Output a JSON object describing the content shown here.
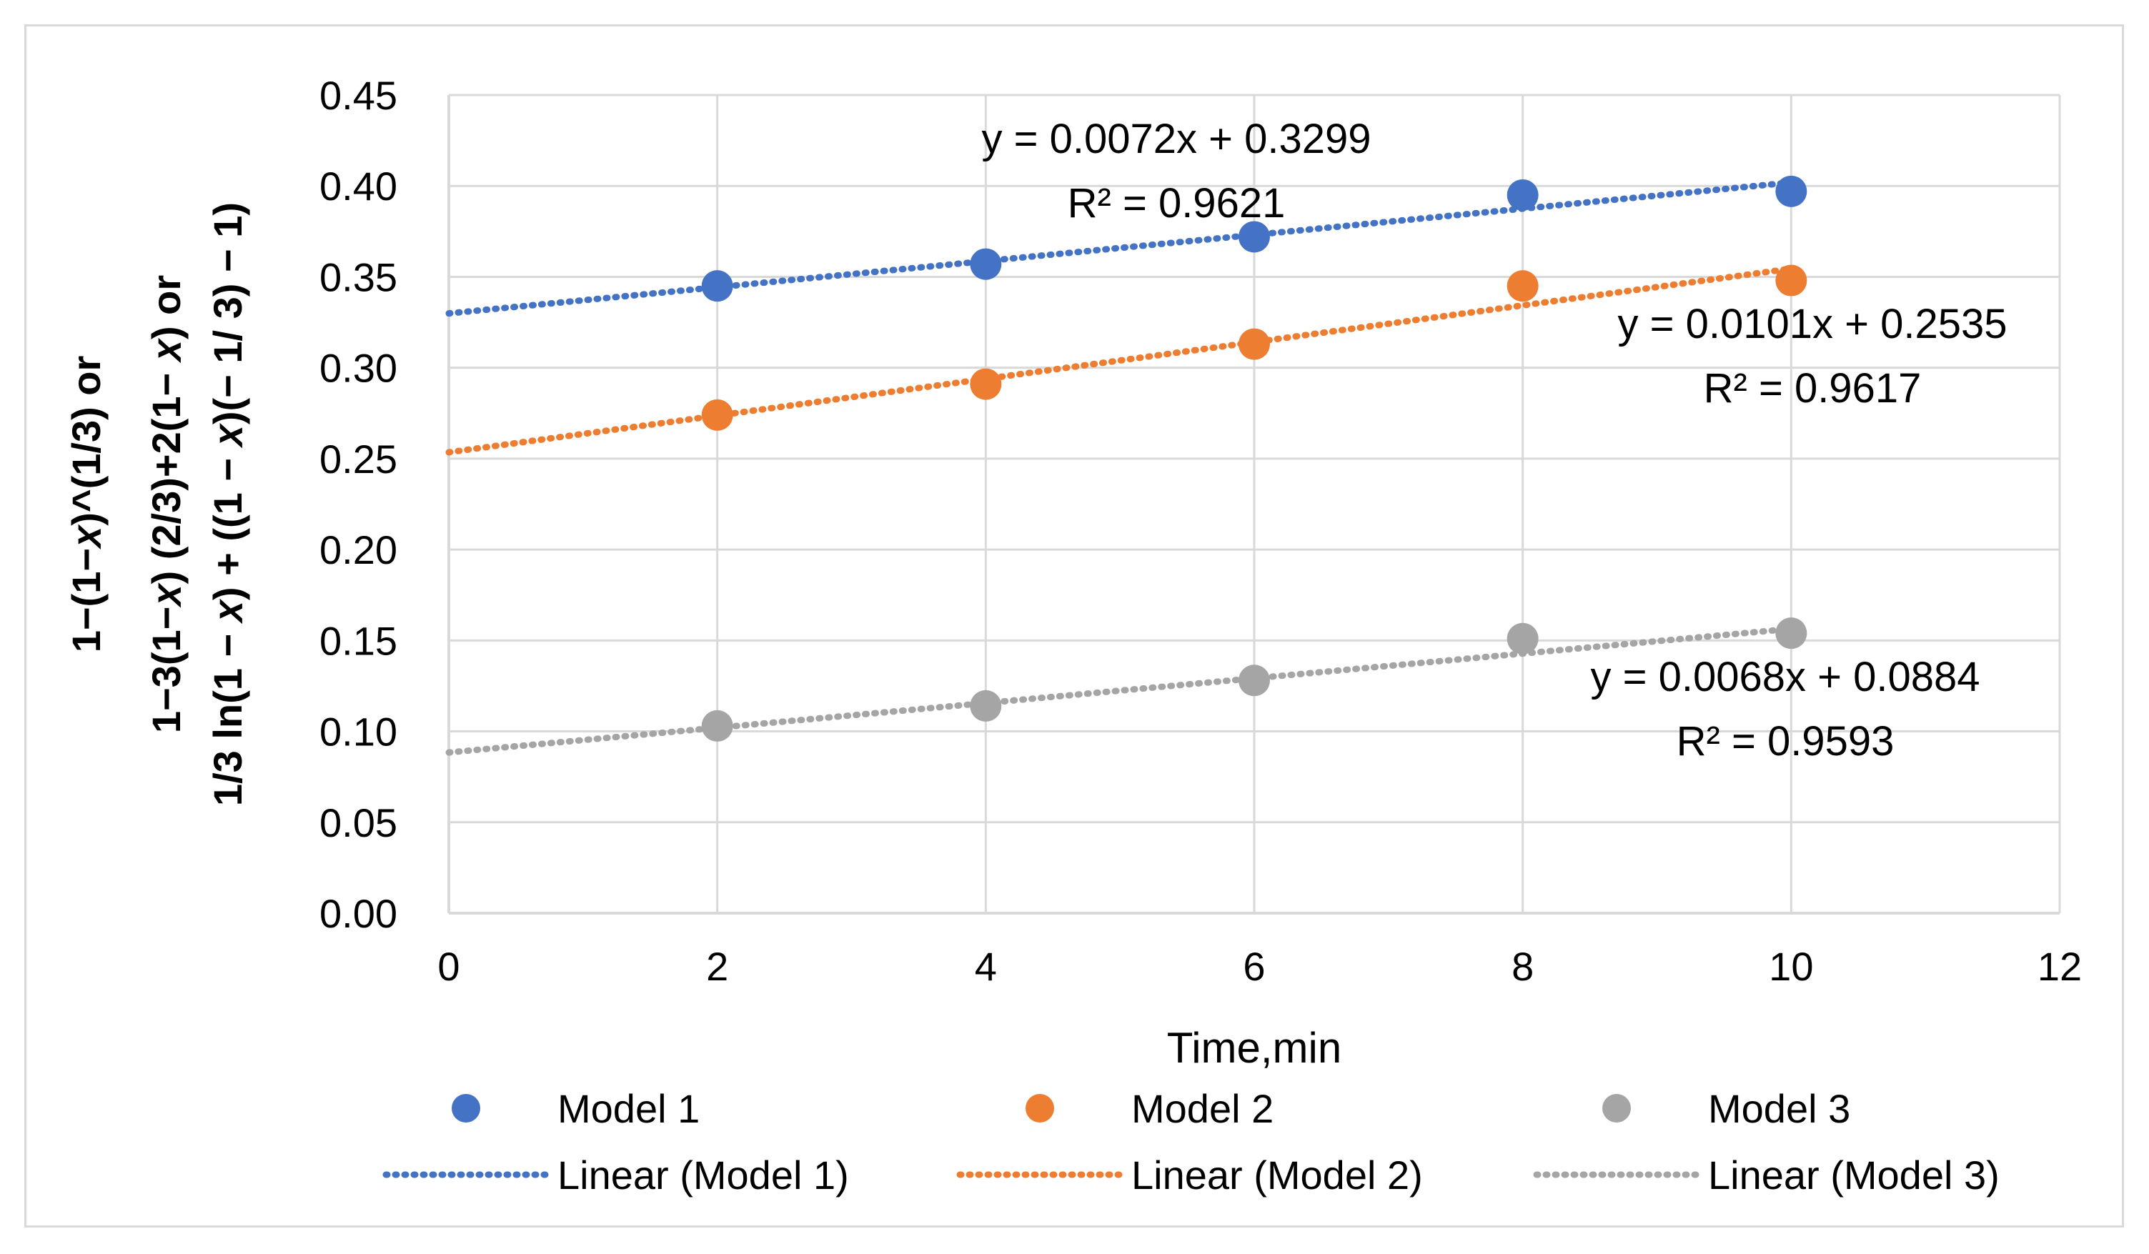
{
  "chart_data": {
    "type": "scatter",
    "title": "",
    "xlabel": "Time,min",
    "ylabel_lines": [
      "1−(1−𝑥)^(1/3) or",
      "1−3(1−𝑥) (2/3)+2(1− 𝑥) or",
      "1/3 ln(1 − 𝑥) + ((1 − 𝑥)(− 1/ 3) − 1)"
    ],
    "xlim": [
      0,
      12
    ],
    "ylim": [
      0,
      0.45
    ],
    "xticks": [
      0,
      2,
      4,
      6,
      8,
      10,
      12
    ],
    "yticks": [
      0,
      0.05,
      0.1,
      0.15,
      0.2,
      0.25,
      0.3,
      0.35,
      0.4,
      0.45
    ],
    "ytick_labels": [
      "0.00",
      "0.05",
      "0.10",
      "0.15",
      "0.20",
      "0.25",
      "0.30",
      "0.35",
      "0.40",
      "0.45"
    ],
    "xtick_labels": [
      "0",
      "2",
      "4",
      "6",
      "8",
      "10",
      "12"
    ],
    "grid": true,
    "legend_position": "bottom",
    "series": [
      {
        "name": "Model 1",
        "color": "#4472c4",
        "x": [
          2,
          4,
          6,
          8,
          10
        ],
        "y": [
          0.345,
          0.357,
          0.372,
          0.395,
          0.397
        ],
        "trendline": {
          "name": "Linear (Model 1)",
          "slope": 0.0072,
          "intercept": 0.3299,
          "x_range": [
            0,
            10.05
          ]
        },
        "equation": "y = 0.0072x + 0.3299",
        "r2": "R² = 0.9621"
      },
      {
        "name": "Model 2",
        "color": "#ed7d31",
        "x": [
          2,
          4,
          6,
          8,
          10
        ],
        "y": [
          0.274,
          0.291,
          0.313,
          0.345,
          0.348
        ],
        "trendline": {
          "name": "Linear (Model 2)",
          "slope": 0.0101,
          "intercept": 0.2535,
          "x_range": [
            0,
            10.05
          ]
        },
        "equation": "y = 0.0101x + 0.2535",
        "r2": "R² = 0.9617"
      },
      {
        "name": "Model 3",
        "color": "#a5a5a5",
        "x": [
          2,
          4,
          6,
          8,
          10
        ],
        "y": [
          0.103,
          0.114,
          0.128,
          0.151,
          0.154
        ],
        "trendline": {
          "name": "Linear (Model 3)",
          "slope": 0.0068,
          "intercept": 0.0884,
          "x_range": [
            0,
            10.05
          ]
        },
        "equation": "y = 0.0068x + 0.0884",
        "r2": "R² = 0.9593"
      }
    ]
  }
}
